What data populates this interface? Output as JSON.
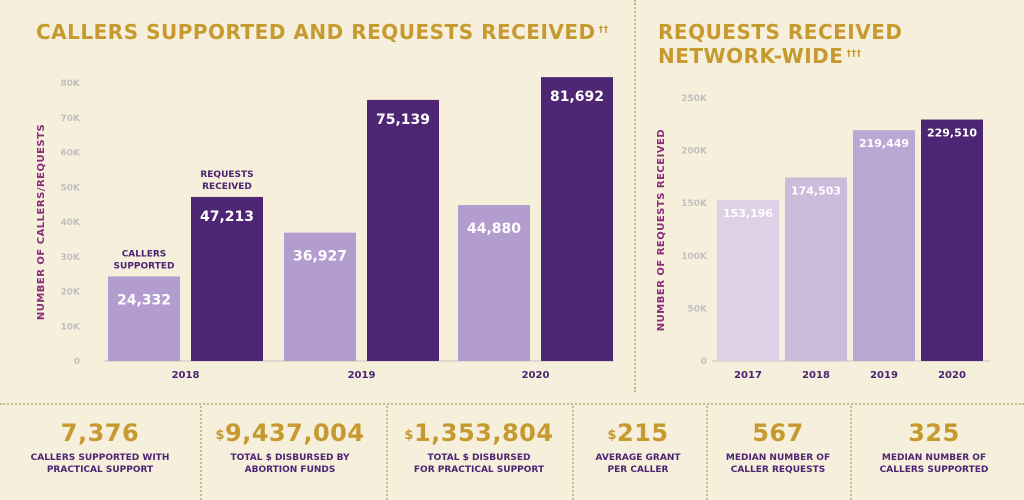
{
  "left_chart": {
    "title": "CALLERS SUPPORTED AND REQUESTS RECEIVED",
    "title_mark": "††",
    "ylabel": "NUMBER OF CALLERS/REQUESTS",
    "callout_callers": [
      "CALLERS",
      "SUPPORTED"
    ],
    "callout_requests": [
      "REQUESTS",
      "RECEIVED"
    ]
  },
  "right_chart": {
    "title": "REQUESTS RECEIVED NETWORK-WIDE",
    "title_mark": "†††",
    "ylabel": "NUMBER OF REQUESTS RECEIVED"
  },
  "chart_data": [
    {
      "type": "bar",
      "title": "CALLERS SUPPORTED AND REQUESTS RECEIVED",
      "categories": [
        "2018",
        "2019",
        "2020"
      ],
      "series": [
        {
          "name": "CALLERS SUPPORTED",
          "values": [
            24332,
            36927,
            44880
          ],
          "labels": [
            "24,332",
            "36,927",
            "44,880"
          ],
          "color": "#b39cce"
        },
        {
          "name": "REQUESTS RECEIVED",
          "values": [
            47213,
            75139,
            81692
          ],
          "labels": [
            "47,213",
            "75,139",
            "81,692"
          ],
          "color": "#4f2673"
        }
      ],
      "ylabel": "NUMBER OF CALLERS/REQUESTS",
      "ylim": [
        0,
        80000
      ],
      "yticks": [
        0,
        10000,
        20000,
        30000,
        40000,
        50000,
        60000,
        70000,
        80000
      ],
      "ytick_labels": [
        "0",
        "10K",
        "20K",
        "30K",
        "40K",
        "50K",
        "60K",
        "70K",
        "80K"
      ]
    },
    {
      "type": "bar",
      "title": "REQUESTS RECEIVED NETWORK-WIDE",
      "categories": [
        "2017",
        "2018",
        "2019",
        "2020"
      ],
      "values": [
        153196,
        174503,
        219449,
        229510
      ],
      "labels": [
        "153,196",
        "174,503",
        "219,449",
        "229,510"
      ],
      "colors": [
        "#ded0e6",
        "#cdbbdc",
        "#bba7d3",
        "#4f2673"
      ],
      "ylabel": "NUMBER OF REQUESTS RECEIVED",
      "ylim": [
        0,
        250000
      ],
      "yticks": [
        0,
        50000,
        100000,
        150000,
        200000,
        250000
      ],
      "ytick_labels": [
        "0",
        "50K",
        "100K",
        "150K",
        "200K",
        "250K"
      ]
    }
  ],
  "stats": [
    {
      "currency": "",
      "value": "7,376",
      "label": "CALLERS SUPPORTED WITH\nPRACTICAL SUPPORT"
    },
    {
      "currency": "$",
      "value": "9,437,004",
      "label": "TOTAL $ DISBURSED BY\nABORTION FUNDS"
    },
    {
      "currency": "$",
      "value": "1,353,804",
      "label": "TOTAL $ DISBURSED\nFOR PRACTICAL SUPPORT"
    },
    {
      "currency": "$",
      "value": "215",
      "label": "AVERAGE GRANT\nPER CALLER"
    },
    {
      "currency": "",
      "value": "567",
      "label": "MEDIAN NUMBER OF\nCALLER REQUESTS"
    },
    {
      "currency": "",
      "value": "325",
      "label": "MEDIAN NUMBER OF\nCALLERS SUPPORTED"
    }
  ]
}
